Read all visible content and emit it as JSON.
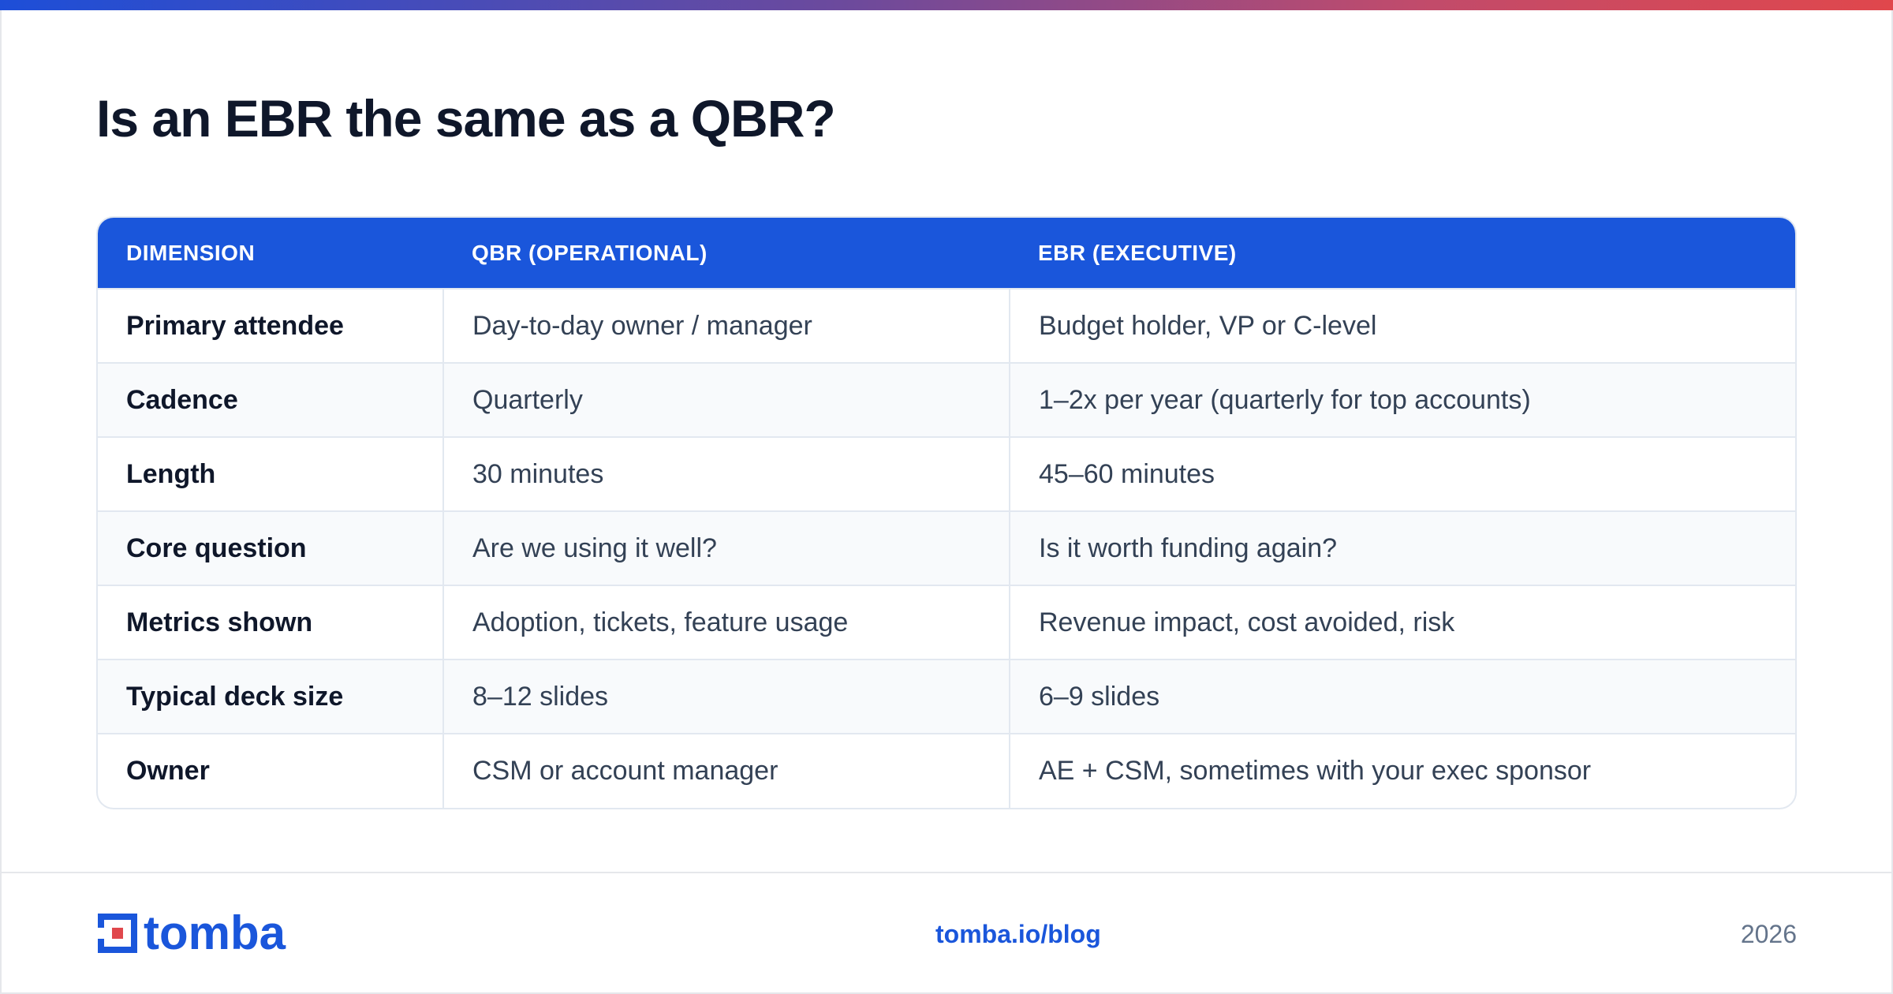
{
  "title": "Is an EBR the same as a QBR?",
  "colors": {
    "brand": "#1a56db",
    "accent_red": "#e0474c"
  },
  "table": {
    "headers": [
      "DIMENSION",
      "QBR (OPERATIONAL)",
      "EBR (EXECUTIVE)"
    ],
    "rows": [
      [
        "Primary attendee",
        "Day-to-day owner / manager",
        "Budget holder, VP or C-level"
      ],
      [
        "Cadence",
        "Quarterly",
        "1–2x per year (quarterly for top accounts)"
      ],
      [
        "Length",
        "30 minutes",
        "45–60 minutes"
      ],
      [
        "Core question",
        "Are we using it well?",
        "Is it worth funding again?"
      ],
      [
        "Metrics shown",
        "Adoption, tickets, feature usage",
        "Revenue impact, cost avoided, risk"
      ],
      [
        "Typical deck size",
        "8–12 slides",
        "6–9 slides"
      ],
      [
        "Owner",
        "CSM or account manager",
        "AE + CSM, sometimes with your exec sponsor"
      ]
    ]
  },
  "footer": {
    "logo_text": "tomba",
    "link": "tomba.io/blog",
    "year": "2026"
  }
}
